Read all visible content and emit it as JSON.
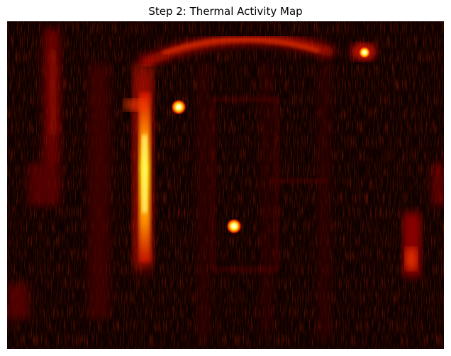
{
  "figure": {
    "title": "Step 2: Thermal Activity Map"
  },
  "image": {
    "kind": "thermal heatmap",
    "colormap": "hot",
    "palette": [
      "#0d0000",
      "#3a0000",
      "#8b0000",
      "#d01000",
      "#ff3c00",
      "#ff8c00",
      "#ffd000",
      "#ffff80",
      "#ffffff"
    ],
    "axes_visible": false,
    "hotspots": [
      {
        "name": "left-vertical-band",
        "intensity": 0.9
      },
      {
        "name": "upper-point",
        "intensity": 1.0
      },
      {
        "name": "center-point",
        "intensity": 1.0
      },
      {
        "name": "top-right-point",
        "intensity": 0.85
      },
      {
        "name": "top-arc",
        "intensity": 0.55
      },
      {
        "name": "right-lower-blob",
        "intensity": 0.5
      }
    ]
  }
}
